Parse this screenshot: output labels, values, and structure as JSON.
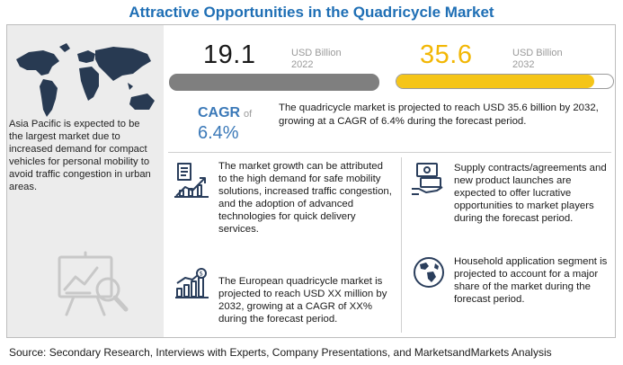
{
  "title": "Attractive Opportunities in the Quadricycle Market",
  "market_2022": {
    "value": "19.1",
    "unit": "USD Billion",
    "year": "2022"
  },
  "market_2032": {
    "value": "35.6",
    "unit": "USD Billion",
    "year": "2032"
  },
  "cagr": {
    "label": "CAGR",
    "of": "of",
    "value": "6.4%"
  },
  "projection_text": "The quadricycle market is projected to reach USD 35.6 billion by 2032, growing at a CAGR of 6.4% during the forecast period.",
  "asia_text": "Asia Pacific is expected to be the largest market due to increased demand for compact vehicles for personal mobility to avoid traffic congestion in urban areas.",
  "insights": {
    "growth": "The market growth can be attributed to the high demand for safe mobility solutions, increased traffic congestion, and the adoption of advanced technologies for quick delivery services.",
    "european": "The European quadricycle market is projected to reach USD  XX million by 2032, growing at a CAGR of XX% during the forecast period.",
    "supply": "Supply contracts/agreements and new product launches are expected to offer lucrative opportunities to market players during the forecast period.",
    "household": "Household application segment is projected to account for a major share of the market during the forecast period."
  },
  "colors": {
    "accent_blue": "#1f6fb5",
    "bar_gray": "#7f7f7f",
    "bar_yellow": "#f5c518",
    "number_yellow": "#f2b705"
  },
  "icons": [
    "world-map-icon",
    "analytics-board-icon",
    "growth-chart-icon",
    "market-growth-icon",
    "money-hand-icon",
    "globe-icon"
  ],
  "footer": "Source: Secondary Research, Interviews with Experts, Company Presentations, and MarketsandMarkets Analysis"
}
